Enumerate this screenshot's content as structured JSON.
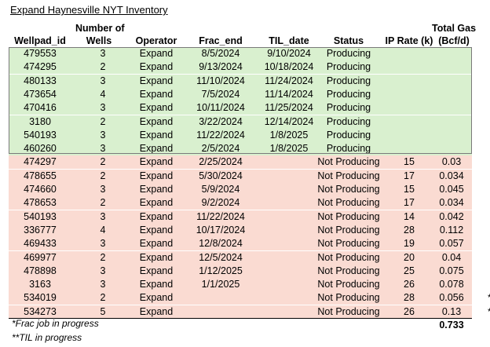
{
  "title": "Expand Haynesville NYT Inventory",
  "headers": {
    "wellpad_id": "Wellpad_id",
    "wells_top": "Number of",
    "wells_bottom": "Wells",
    "operator": "Operator",
    "frac_end": "Frac_end",
    "til_date": "TIL_date",
    "status": "Status",
    "ip_rate": "IP Rate (k)",
    "gas_top": "Total Gas",
    "gas_bottom": "(Bcf/d)"
  },
  "colors": {
    "producing_fill": "#d9f0cf",
    "not_producing_fill": "#fadbd2"
  },
  "rows": [
    {
      "wellpad_id": "479553",
      "wells": "3",
      "operator": "Expand",
      "frac_end": "8/5/2024",
      "til_date": "9/10/2024",
      "status": "Producing",
      "ip_rate": "",
      "total_gas": "",
      "mark": ""
    },
    {
      "wellpad_id": "474295",
      "wells": "2",
      "operator": "Expand",
      "frac_end": "9/13/2024",
      "til_date": "10/18/2024",
      "status": "Producing",
      "ip_rate": "",
      "total_gas": "",
      "mark": ""
    },
    {
      "wellpad_id": "480133",
      "wells": "3",
      "operator": "Expand",
      "frac_end": "11/10/2024",
      "til_date": "11/24/2024",
      "status": "Producing",
      "ip_rate": "",
      "total_gas": "",
      "mark": ""
    },
    {
      "wellpad_id": "473654",
      "wells": "4",
      "operator": "Expand",
      "frac_end": "7/5/2024",
      "til_date": "11/14/2024",
      "status": "Producing",
      "ip_rate": "",
      "total_gas": "",
      "mark": ""
    },
    {
      "wellpad_id": "470416",
      "wells": "3",
      "operator": "Expand",
      "frac_end": "10/11/2024",
      "til_date": "11/25/2024",
      "status": "Producing",
      "ip_rate": "",
      "total_gas": "",
      "mark": ""
    },
    {
      "wellpad_id": "3180",
      "wells": "2",
      "operator": "Expand",
      "frac_end": "3/22/2024",
      "til_date": "12/14/2024",
      "status": "Producing",
      "ip_rate": "",
      "total_gas": "",
      "mark": ""
    },
    {
      "wellpad_id": "540193",
      "wells": "3",
      "operator": "Expand",
      "frac_end": "11/22/2024",
      "til_date": "1/8/2025",
      "status": "Producing",
      "ip_rate": "",
      "total_gas": "",
      "mark": ""
    },
    {
      "wellpad_id": "460260",
      "wells": "3",
      "operator": "Expand",
      "frac_end": "2/5/2024",
      "til_date": "1/8/2025",
      "status": "Producing",
      "ip_rate": "",
      "total_gas": "",
      "mark": ""
    },
    {
      "wellpad_id": "474297",
      "wells": "2",
      "operator": "Expand",
      "frac_end": "2/25/2024",
      "til_date": "",
      "status": "Not Producing",
      "ip_rate": "15",
      "total_gas": "0.03",
      "mark": ""
    },
    {
      "wellpad_id": "478655",
      "wells": "2",
      "operator": "Expand",
      "frac_end": "5/30/2024",
      "til_date": "",
      "status": "Not Producing",
      "ip_rate": "17",
      "total_gas": "0.034",
      "mark": ""
    },
    {
      "wellpad_id": "474660",
      "wells": "3",
      "operator": "Expand",
      "frac_end": "5/9/2024",
      "til_date": "",
      "status": "Not Producing",
      "ip_rate": "15",
      "total_gas": "0.045",
      "mark": ""
    },
    {
      "wellpad_id": "478653",
      "wells": "2",
      "operator": "Expand",
      "frac_end": "9/2/2024",
      "til_date": "",
      "status": "Not Producing",
      "ip_rate": "17",
      "total_gas": "0.034",
      "mark": ""
    },
    {
      "wellpad_id": "540193",
      "wells": "3",
      "operator": "Expand",
      "frac_end": "11/22/2024",
      "til_date": "",
      "status": "Not Producing",
      "ip_rate": "14",
      "total_gas": "0.042",
      "mark": ""
    },
    {
      "wellpad_id": "336777",
      "wells": "4",
      "operator": "Expand",
      "frac_end": "10/17/2024",
      "til_date": "",
      "status": "Not Producing",
      "ip_rate": "28",
      "total_gas": "0.112",
      "mark": ""
    },
    {
      "wellpad_id": "469433",
      "wells": "3",
      "operator": "Expand",
      "frac_end": "12/8/2024",
      "til_date": "",
      "status": "Not Producing",
      "ip_rate": "19",
      "total_gas": "0.057",
      "mark": ""
    },
    {
      "wellpad_id": "469977",
      "wells": "2",
      "operator": "Expand",
      "frac_end": "12/5/2024",
      "til_date": "",
      "status": "Not Producing",
      "ip_rate": "20",
      "total_gas": "0.04",
      "mark": ""
    },
    {
      "wellpad_id": "478898",
      "wells": "3",
      "operator": "Expand",
      "frac_end": "1/12/2025",
      "til_date": "",
      "status": "Not Producing",
      "ip_rate": "25",
      "total_gas": "0.075",
      "mark": ""
    },
    {
      "wellpad_id": "3163",
      "wells": "3",
      "operator": "Expand",
      "frac_end": "1/1/2025",
      "til_date": "",
      "status": "Not Producing",
      "ip_rate": "26",
      "total_gas": "0.078",
      "mark": ""
    },
    {
      "wellpad_id": "534019",
      "wells": "2",
      "operator": "Expand",
      "frac_end": "",
      "til_date": "",
      "status": "Not Producing",
      "ip_rate": "28",
      "total_gas": "0.056",
      "mark": "*"
    },
    {
      "wellpad_id": "534273",
      "wells": "5",
      "operator": "Expand",
      "frac_end": "",
      "til_date": "",
      "status": "Not Producing",
      "ip_rate": "26",
      "total_gas": "0.13",
      "mark": "*"
    }
  ],
  "total_gas_sum": "0.733",
  "footnotes": {
    "frac": "*Frac job in progress",
    "til": "**TIL in progress"
  }
}
